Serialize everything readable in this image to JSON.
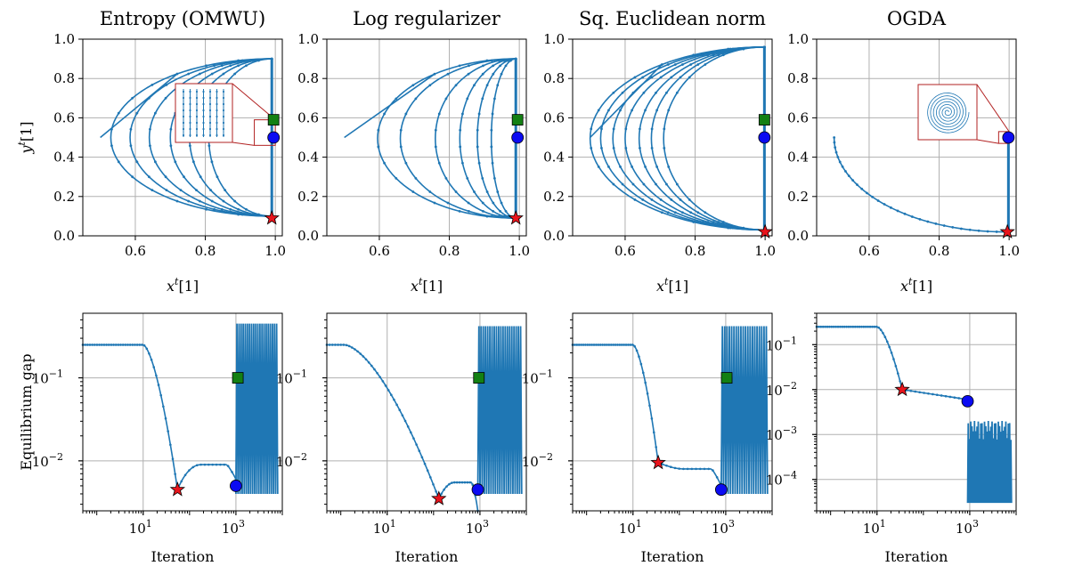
{
  "colors": {
    "series": "#1f77b4",
    "star": "#e8141c",
    "square": "#138013",
    "circle": "#0b0bf2"
  },
  "chart_data": [
    {
      "type": "line",
      "title": "Entropy (OMWU)",
      "xlabel": "x^t[1]",
      "ylabel": "y^t[1]",
      "xlim": [
        0.45,
        1.02
      ],
      "ylim": [
        0,
        1.0
      ],
      "grid": true,
      "xticks": [
        {
          "v": 0.6,
          "label": "0.6"
        },
        {
          "v": 0.8,
          "label": "0.8"
        },
        {
          "v": 1.0,
          "label": "1.0"
        }
      ],
      "yticks": [
        {
          "v": 0.0,
          "label": "0.0"
        },
        {
          "v": 0.2,
          "label": "0.2"
        },
        {
          "v": 0.4,
          "label": "0.4"
        },
        {
          "v": 0.6,
          "label": "0.6"
        },
        {
          "v": 0.8,
          "label": "0.8"
        },
        {
          "v": 1.0,
          "label": "1.0"
        }
      ],
      "trajectory": {
        "kind": "loops",
        "start": [
          0.5,
          0.5
        ],
        "left_points": [
          0.53,
          0.585,
          0.64,
          0.7,
          0.755,
          0.81
        ],
        "y_top": 0.9,
        "y_bottom": 0.1,
        "right_x": 0.99
      },
      "markers": {
        "star": [
          0.99,
          0.09
        ],
        "square": [
          0.995,
          0.59
        ],
        "circle": [
          0.995,
          0.5
        ]
      },
      "inset": "lines"
    },
    {
      "type": "line",
      "title": "Log regularizer",
      "xlabel": "x^t[1]",
      "ylabel": "",
      "xlim": [
        0.45,
        1.02
      ],
      "ylim": [
        0,
        1.0
      ],
      "grid": true,
      "xticks": [
        {
          "v": 0.6,
          "label": "0.6"
        },
        {
          "v": 0.8,
          "label": "0.8"
        },
        {
          "v": 1.0,
          "label": "1.0"
        }
      ],
      "yticks": [
        {
          "v": 0.0,
          "label": "0.0"
        },
        {
          "v": 0.2,
          "label": "0.2"
        },
        {
          "v": 0.4,
          "label": "0.4"
        },
        {
          "v": 0.6,
          "label": "0.6"
        },
        {
          "v": 0.8,
          "label": "0.8"
        },
        {
          "v": 1.0,
          "label": "1.0"
        }
      ],
      "trajectory": {
        "kind": "loops",
        "start": [
          0.5,
          0.5
        ],
        "left_points": [
          0.595,
          0.66,
          0.76,
          0.83,
          0.88,
          0.92
        ],
        "y_top": 0.9,
        "y_bottom": 0.09,
        "right_x": 0.99
      },
      "markers": {
        "star": [
          0.99,
          0.09
        ],
        "square": [
          0.995,
          0.59
        ],
        "circle": [
          0.995,
          0.5
        ]
      },
      "inset": null
    },
    {
      "type": "line",
      "title": "Sq. Euclidean norm",
      "xlabel": "x^t[1]",
      "ylabel": "",
      "xlim": [
        0.45,
        1.02
      ],
      "ylim": [
        0,
        1.0
      ],
      "grid": true,
      "xticks": [
        {
          "v": 0.6,
          "label": "0.6"
        },
        {
          "v": 0.8,
          "label": "0.8"
        },
        {
          "v": 1.0,
          "label": "1.0"
        }
      ],
      "yticks": [
        {
          "v": 0.0,
          "label": "0.0"
        },
        {
          "v": 0.2,
          "label": "0.2"
        },
        {
          "v": 0.4,
          "label": "0.4"
        },
        {
          "v": 0.6,
          "label": "0.6"
        },
        {
          "v": 0.8,
          "label": "0.8"
        },
        {
          "v": 1.0,
          "label": "1.0"
        }
      ],
      "trajectory": {
        "kind": "loops",
        "start": [
          0.5,
          0.5
        ],
        "left_points": [
          0.5,
          0.53,
          0.565,
          0.6,
          0.64,
          0.675,
          0.71
        ],
        "y_top": 0.96,
        "y_bottom": 0.03,
        "right_x": 0.998
      },
      "markers": {
        "star": [
          1.0,
          0.02
        ],
        "square": [
          0.998,
          0.59
        ],
        "circle": [
          0.998,
          0.5
        ]
      },
      "inset": null
    },
    {
      "type": "line",
      "title": "OGDA",
      "xlabel": "x^t[1]",
      "ylabel": "",
      "xlim": [
        0.45,
        1.02
      ],
      "ylim": [
        0,
        1.0
      ],
      "grid": true,
      "xticks": [
        {
          "v": 0.6,
          "label": "0.6"
        },
        {
          "v": 0.8,
          "label": "0.8"
        },
        {
          "v": 1.0,
          "label": "1.0"
        }
      ],
      "yticks": [
        {
          "v": 0.0,
          "label": "0.0"
        },
        {
          "v": 0.2,
          "label": "0.2"
        },
        {
          "v": 0.4,
          "label": "0.4"
        },
        {
          "v": 0.6,
          "label": "0.6"
        },
        {
          "v": 0.8,
          "label": "0.8"
        },
        {
          "v": 1.0,
          "label": "1.0"
        }
      ],
      "trajectory": {
        "kind": "arc",
        "start": [
          0.5,
          0.5
        ],
        "end": [
          0.99,
          0.02
        ],
        "right_x": 0.998
      },
      "markers": {
        "star": [
          0.995,
          0.02
        ],
        "circle": [
          0.998,
          0.5
        ]
      },
      "inset": "spiral"
    },
    {
      "type": "line",
      "title": "",
      "xlabel": "Iteration",
      "ylabel": "Equilibrium gap",
      "xscale": "log",
      "yscale": "log",
      "xlim": [
        0.5,
        10000
      ],
      "ylim": [
        0.0025,
        0.6
      ],
      "grid": true,
      "xticks": [
        {
          "v": 10,
          "base": "10",
          "exp": "1"
        },
        {
          "v": 1000,
          "base": "10",
          "exp": "3"
        }
      ],
      "yticks": [
        {
          "v": 0.01,
          "base": "10",
          "exp": "−2"
        },
        {
          "v": 0.1,
          "base": "10",
          "exp": "−1"
        }
      ],
      "gap": {
        "plateau": 0.25,
        "drop_at": 10,
        "min_iter": 55,
        "min_gap": 0.0045,
        "mid_gap": 0.009,
        "mid_end": 1000,
        "osc_lo": 0.004,
        "osc_hi": 0.45
      },
      "markers": {
        "star": [
          55,
          0.0045
        ],
        "square": [
          1100,
          0.1
        ],
        "circle": [
          1000,
          0.005
        ]
      }
    },
    {
      "type": "line",
      "title": "",
      "xlabel": "Iteration",
      "ylabel": "",
      "xscale": "log",
      "yscale": "log",
      "xlim": [
        0.5,
        10000
      ],
      "ylim": [
        0.0025,
        0.6
      ],
      "grid": true,
      "xticks": [
        {
          "v": 10,
          "base": "10",
          "exp": "1"
        },
        {
          "v": 1000,
          "base": "10",
          "exp": "3"
        }
      ],
      "yticks": [
        {
          "v": 0.01,
          "base": "10",
          "exp": "−2"
        },
        {
          "v": 0.1,
          "base": "10",
          "exp": "−1"
        }
      ],
      "gap": {
        "plateau": 0.25,
        "drop_at": 1.2,
        "min_iter": 130,
        "min_gap": 0.0035,
        "mid_gap": 0.0055,
        "mid_end": 900,
        "osc_lo": 0.004,
        "osc_hi": 0.42
      },
      "markers": {
        "star": [
          130,
          0.0035
        ],
        "square": [
          950,
          0.1
        ],
        "circle": [
          900,
          0.0045
        ]
      }
    },
    {
      "type": "line",
      "title": "",
      "xlabel": "Iteration",
      "ylabel": "",
      "xscale": "log",
      "yscale": "log",
      "xlim": [
        0.5,
        10000
      ],
      "ylim": [
        0.0025,
        0.6
      ],
      "grid": true,
      "xticks": [
        {
          "v": 10,
          "base": "10",
          "exp": "1"
        },
        {
          "v": 1000,
          "base": "10",
          "exp": "3"
        }
      ],
      "yticks": [
        {
          "v": 0.01,
          "base": "10",
          "exp": "−2"
        },
        {
          "v": 0.1,
          "base": "10",
          "exp": "−1"
        }
      ],
      "gap": {
        "plateau": 0.25,
        "drop_at": 10,
        "min_iter": 35,
        "min_gap": 0.0095,
        "mid_gap": 0.008,
        "mid_end": 800,
        "osc_lo": 0.004,
        "osc_hi": 0.42
      },
      "markers": {
        "star": [
          35,
          0.0095
        ],
        "square": [
          1050,
          0.1
        ],
        "circle": [
          800,
          0.0045
        ]
      }
    },
    {
      "type": "line",
      "title": "",
      "xlabel": "Iteration",
      "ylabel": "",
      "xscale": "log",
      "yscale": "log",
      "xlim": [
        0.5,
        10000
      ],
      "ylim": [
        2e-05,
        0.5
      ],
      "grid": true,
      "xticks": [
        {
          "v": 10,
          "base": "10",
          "exp": "1"
        },
        {
          "v": 1000,
          "base": "10",
          "exp": "3"
        }
      ],
      "yticks": [
        {
          "v": 0.0001,
          "base": "10",
          "exp": "−4"
        },
        {
          "v": 0.001,
          "base": "10",
          "exp": "−3"
        },
        {
          "v": 0.01,
          "base": "10",
          "exp": "−2"
        },
        {
          "v": 0.1,
          "base": "10",
          "exp": "−1"
        }
      ],
      "gap": {
        "plateau": 0.25,
        "drop_at": 10,
        "min_iter": 35,
        "min_gap": 0.01,
        "mid_gap": 0.006,
        "mid_end": 900,
        "osc_lo": 3e-05,
        "osc_hi": 0.002,
        "ogda": true
      },
      "markers": {
        "star": [
          35,
          0.01
        ],
        "circle": [
          900,
          0.0055
        ]
      }
    }
  ]
}
